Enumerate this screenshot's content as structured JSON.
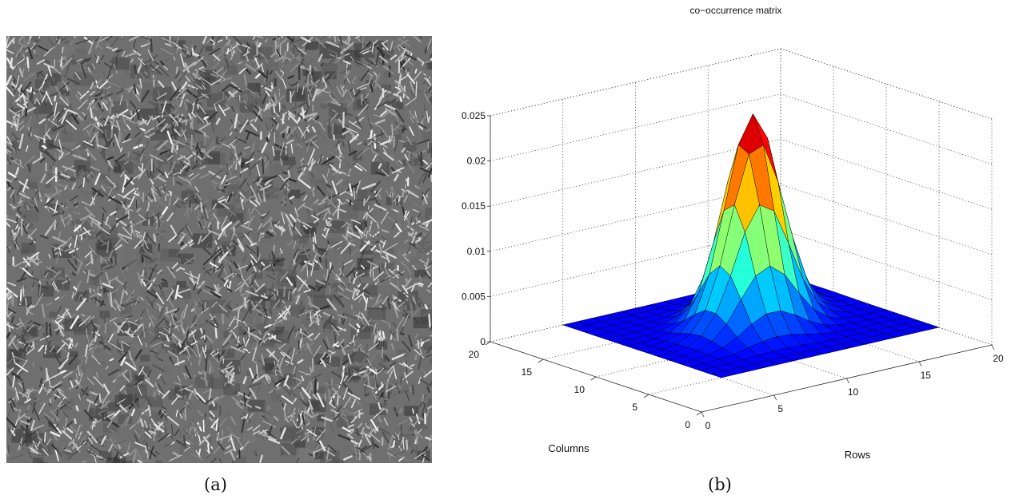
{
  "captions": {
    "a": "(a)",
    "b": "(b)"
  },
  "texture_panel": {
    "description_hidden": true
  },
  "chart_data": {
    "type": "surface3d",
    "title": "co−occurrence matrix",
    "xlabel": "Rows",
    "ylabel": "Columns",
    "zlabel": "",
    "xlim": [
      0,
      20
    ],
    "ylim": [
      0,
      20
    ],
    "zlim": [
      0,
      0.025
    ],
    "xticks": [
      "0",
      "5",
      "10",
      "15",
      "20"
    ],
    "yticks": [
      "0",
      "5",
      "10",
      "15",
      "20"
    ],
    "zticks": [
      "0",
      "0.005",
      "0.01",
      "0.015",
      "0.02",
      "0.025"
    ],
    "grid": true,
    "colormap": "jet",
    "peak": {
      "x": 13,
      "y": 13,
      "z": 0.0231
    },
    "surface_model": "gaussian peak over grid 5..20, sharper along diagonal"
  }
}
